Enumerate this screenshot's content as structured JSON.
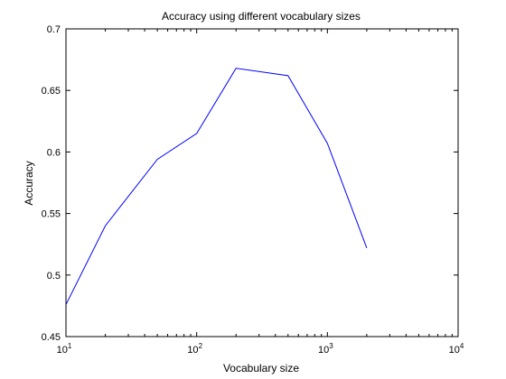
{
  "chart_data": {
    "type": "line",
    "title": "Accuracy using different vocabulary sizes",
    "xlabel": "Vocabulary size",
    "ylabel": "Accuracy",
    "xscale": "log",
    "xlim": [
      10,
      10000
    ],
    "ylim": [
      0.45,
      0.7
    ],
    "grid": false,
    "xticks": [
      {
        "value": 10,
        "base": "10",
        "exp": "1"
      },
      {
        "value": 100,
        "base": "10",
        "exp": "2"
      },
      {
        "value": 1000,
        "base": "10",
        "exp": "3"
      },
      {
        "value": 10000,
        "base": "10",
        "exp": "4"
      }
    ],
    "yticks": [
      {
        "value": 0.45,
        "label": "0.45"
      },
      {
        "value": 0.5,
        "label": "0.5"
      },
      {
        "value": 0.55,
        "label": "0.55"
      },
      {
        "value": 0.6,
        "label": "0.6"
      },
      {
        "value": 0.65,
        "label": "0.65"
      },
      {
        "value": 0.7,
        "label": "0.7"
      }
    ],
    "series": [
      {
        "color": "#0000ff",
        "x": [
          10,
          20,
          50,
          100,
          200,
          500,
          1000,
          2000
        ],
        "y": [
          0.476,
          0.54,
          0.594,
          0.615,
          0.668,
          0.662,
          0.607,
          0.522
        ]
      }
    ]
  }
}
